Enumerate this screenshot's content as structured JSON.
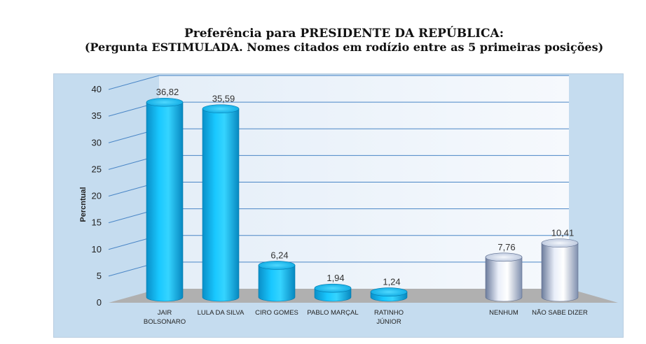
{
  "header": {
    "title": "Preferência para PRESIDENTE DA REPÚBLICA:",
    "subtitle": "(Pergunta ESTIMULADA. Nomes citados em rodízio entre as 5 primeiras posições)"
  },
  "chart_data": {
    "type": "bar",
    "ylabel": "Percntual",
    "ylim": [
      0,
      40
    ],
    "yticks": [
      0,
      5,
      10,
      15,
      20,
      25,
      30,
      35,
      40
    ],
    "grid": true,
    "categories": [
      [
        "JAIR",
        "BOLSONARO"
      ],
      [
        "LULA DA SILVA"
      ],
      [
        "CIRO GOMES"
      ],
      [
        "PABLO MARÇAL"
      ],
      [
        "RATINHO",
        "JÚNIOR"
      ],
      [
        "NENHUM"
      ],
      [
        "NÃO SABE DIZER"
      ]
    ],
    "values": [
      36.82,
      35.59,
      6.24,
      1.94,
      1.24,
      7.76,
      10.41
    ],
    "value_labels": [
      "36,82",
      "35,59",
      "6,24",
      "1,94",
      "1,24",
      "7,76",
      "10,41"
    ],
    "bar_styles": [
      "candidate",
      "candidate",
      "candidate",
      "candidate",
      "candidate",
      "other",
      "other"
    ],
    "colors": {
      "candidate": "#00b0f0",
      "other": "#b9c7e4",
      "panel": "#c5dcef",
      "floor": "#b0b0b0"
    }
  }
}
